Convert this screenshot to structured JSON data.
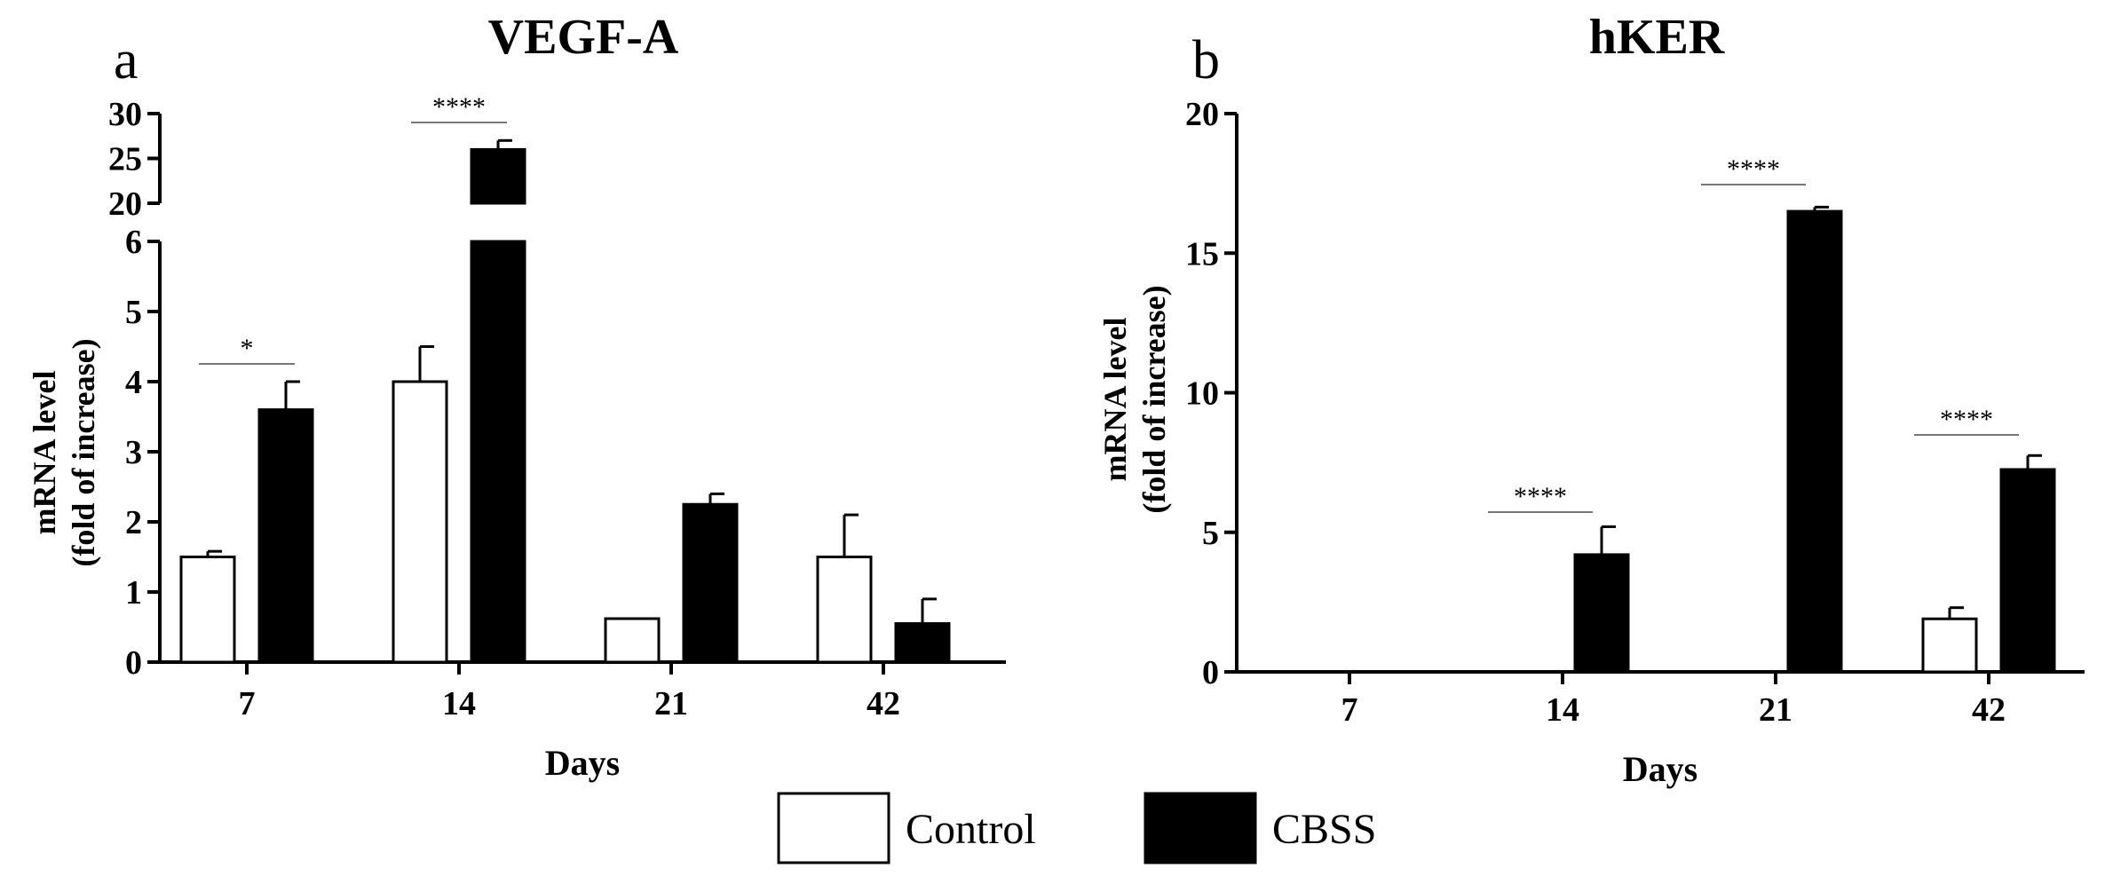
{
  "legend": [
    {
      "name": "Control",
      "fill": "#ffffff"
    },
    {
      "name": "CBSS",
      "fill": "#000000"
    }
  ],
  "chart_data": [
    {
      "type": "bar",
      "panel_label": "a",
      "title": "VEGF-A",
      "xlabel": "Days",
      "ylabel": [
        "mRNA level",
        "(fold of increase)"
      ],
      "categories": [
        "7",
        "14",
        "21",
        "42"
      ],
      "y_axis": "broken",
      "ylim_lower": [
        0,
        6
      ],
      "ylim_upper": [
        20,
        30
      ],
      "yticks_lower": [
        "0",
        "1",
        "2",
        "3",
        "4",
        "5",
        "6"
      ],
      "yticks_upper": [
        "20",
        "25",
        "30"
      ],
      "series": [
        {
          "name": "Control",
          "values": [
            1.5,
            4.0,
            0.62,
            1.5
          ],
          "errors": [
            0.08,
            0.5,
            0.0,
            0.6
          ]
        },
        {
          "name": "CBSS",
          "values": [
            3.6,
            26.0,
            2.25,
            0.55
          ],
          "errors": [
            0.4,
            1.0,
            0.15,
            0.35
          ]
        }
      ],
      "significance": [
        {
          "category": "7",
          "label": "*"
        },
        {
          "category": "14",
          "label": "****"
        }
      ]
    },
    {
      "type": "bar",
      "panel_label": "b",
      "title": "hKER",
      "xlabel": "Days",
      "ylabel": [
        "mRNA level",
        "(fold of increase)"
      ],
      "categories": [
        "7",
        "14",
        "21",
        "42"
      ],
      "ylim": [
        0,
        20
      ],
      "yticks": [
        "0",
        "5",
        "10",
        "15",
        "20"
      ],
      "series": [
        {
          "name": "Control",
          "values": [
            0,
            0,
            0,
            1.9
          ],
          "errors": [
            0,
            0,
            0,
            0.4
          ]
        },
        {
          "name": "CBSS",
          "values": [
            0,
            4.2,
            16.5,
            7.25
          ],
          "errors": [
            0,
            1.0,
            0.15,
            0.5
          ]
        }
      ],
      "significance": [
        {
          "category": "14",
          "label": "****"
        },
        {
          "category": "21",
          "label": "****"
        },
        {
          "category": "42",
          "label": "****"
        }
      ]
    }
  ]
}
